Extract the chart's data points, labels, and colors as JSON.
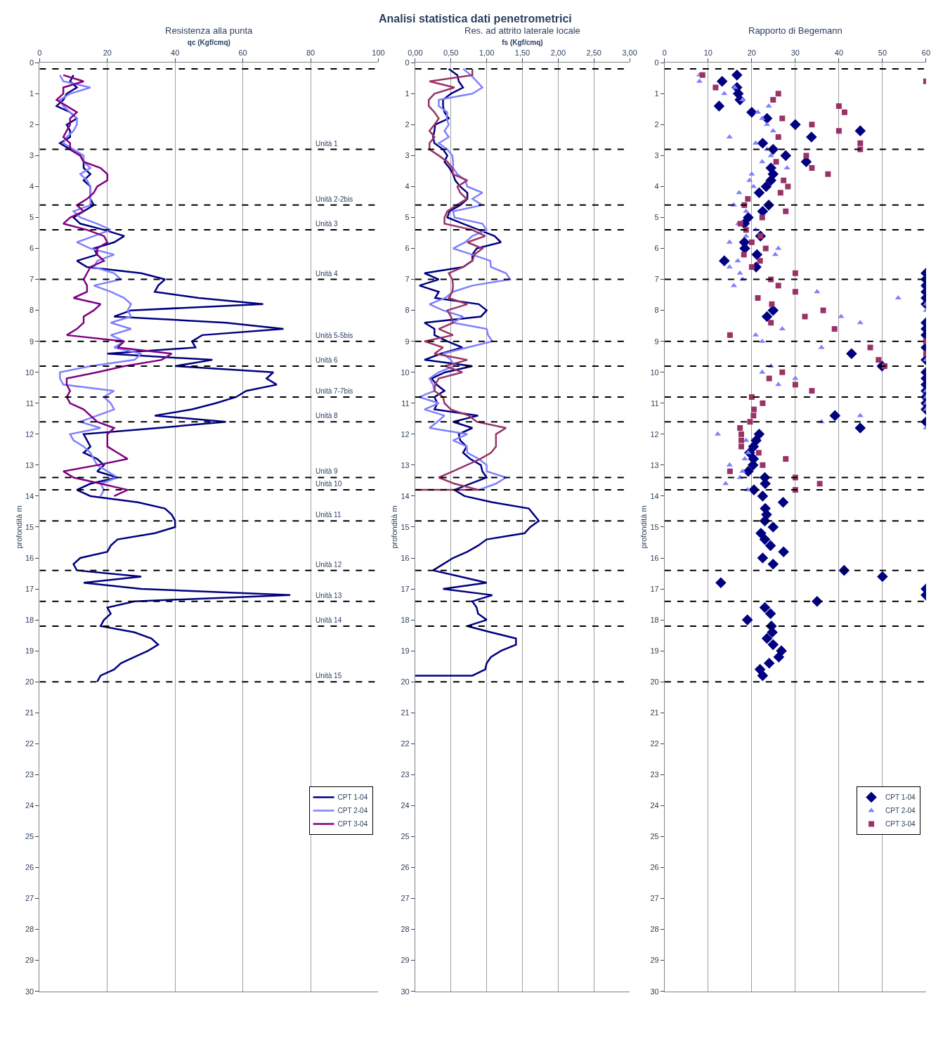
{
  "chart_data": [
    {
      "type": "line",
      "title": "Resistenza alla punta",
      "xlabel": "qc (Kgf/cmq)",
      "ylabel": "profondità m",
      "annotations": [
        "Analisi statistica dati penetrometrici"
      ],
      "xlim": [
        0,
        100
      ],
      "xticks": [
        0,
        20,
        40,
        60,
        80,
        100
      ],
      "ylim": [
        30,
        0
      ],
      "yticks": [
        0,
        1,
        2,
        3,
        4,
        5,
        6,
        7,
        8,
        9,
        10,
        11,
        12,
        13,
        14,
        15,
        16,
        17,
        18,
        19,
        20,
        21,
        22,
        23,
        24,
        25,
        26,
        27,
        28,
        29,
        30
      ],
      "grid": "x",
      "legend": "bottom right",
      "line_style": "solid",
      "marker": "none",
      "ref_lines": [
        {
          "axis": "y",
          "value": 0.2,
          "label": null,
          "color": "#000000",
          "line_style": "dashed"
        },
        {
          "axis": "y",
          "value": 2.8,
          "label": "Unità 1",
          "color": "#000000",
          "line_style": "dashed"
        },
        {
          "axis": "y",
          "value": 4.6,
          "label": "Unità 2-2bis",
          "color": "#000000",
          "line_style": "dashed"
        },
        {
          "axis": "y",
          "value": 5.4,
          "label": "Unità 3",
          "color": "#000000",
          "line_style": "dashed"
        },
        {
          "axis": "y",
          "value": 7.0,
          "label": "Unità 4",
          "color": "#000000",
          "line_style": "dashed"
        },
        {
          "axis": "y",
          "value": 9.0,
          "label": "Unità 5-5bis",
          "color": "#000000",
          "line_style": "dashed"
        },
        {
          "axis": "y",
          "value": 9.8,
          "label": "Unità 6",
          "color": "#000000",
          "line_style": "dashed"
        },
        {
          "axis": "y",
          "value": 10.8,
          "label": "Unità 7-7bis",
          "color": "#000000",
          "line_style": "dashed"
        },
        {
          "axis": "y",
          "value": 11.6,
          "label": "Unità 8",
          "color": "#000000",
          "line_style": "dashed"
        },
        {
          "axis": "y",
          "value": 13.4,
          "label": "Unità 9",
          "color": "#000000",
          "line_style": "dashed"
        },
        {
          "axis": "y",
          "value": 13.8,
          "label": "Unità 10",
          "color": "#000000",
          "line_style": "dashed"
        },
        {
          "axis": "y",
          "value": 14.8,
          "label": "Unità 11",
          "color": "#000000",
          "line_style": "dashed"
        },
        {
          "axis": "y",
          "value": 16.4,
          "label": "Unità 12",
          "color": "#000000",
          "line_style": "dashed"
        },
        {
          "axis": "y",
          "value": 17.4,
          "label": "Unità 13",
          "color": "#000000",
          "line_style": "dashed"
        },
        {
          "axis": "y",
          "value": 18.2,
          "label": "Unità 14",
          "color": "#000000",
          "line_style": "dashed"
        },
        {
          "axis": "y",
          "value": 20.0,
          "label": "Unità 15",
          "color": "#000000",
          "line_style": "dashed"
        }
      ],
      "series": [
        {
          "name": "CPT 1-04",
          "color": "#000080",
          "x": [
            10,
            9,
            11,
            8,
            7,
            5,
            9,
            11,
            8,
            9,
            9,
            6,
            9,
            12,
            13,
            13,
            15,
            13,
            15,
            15,
            15,
            16,
            13,
            10,
            12,
            19,
            25,
            22,
            16,
            17,
            11,
            14,
            30,
            37,
            35,
            34,
            47,
            66,
            27,
            22,
            55,
            72,
            48,
            45,
            46,
            20,
            51,
            40,
            69,
            67,
            70,
            61,
            58,
            52,
            45,
            34,
            55,
            35,
            13,
            14,
            15,
            13,
            17,
            19,
            17,
            23,
            15,
            11,
            15,
            29,
            37,
            39,
            40,
            40,
            34,
            23,
            21,
            20,
            12,
            10,
            11,
            30,
            13,
            30,
            74,
            28,
            20,
            21,
            19,
            18,
            28,
            33,
            35,
            32,
            28,
            24,
            22,
            18,
            17
          ],
          "values": [
            0.4,
            0.6,
            0.8,
            1.0,
            1.2,
            1.4,
            1.6,
            1.8,
            2.0,
            2.2,
            2.4,
            2.6,
            2.8,
            3.0,
            3.2,
            3.4,
            3.6,
            3.8,
            4.0,
            4.2,
            4.4,
            4.6,
            4.8,
            5.0,
            5.2,
            5.4,
            5.6,
            5.8,
            6.0,
            6.2,
            6.4,
            6.6,
            6.8,
            7.0,
            7.2,
            7.4,
            7.6,
            7.8,
            8.0,
            8.2,
            8.4,
            8.6,
            8.8,
            9.0,
            9.2,
            9.4,
            9.6,
            9.8,
            10.0,
            10.2,
            10.4,
            10.6,
            10.8,
            11.0,
            11.2,
            11.4,
            11.6,
            11.8,
            12.0,
            12.2,
            12.4,
            12.6,
            12.8,
            13.0,
            13.2,
            13.4,
            13.6,
            13.8,
            14.0,
            14.2,
            14.4,
            14.6,
            14.8,
            15.0,
            15.2,
            15.4,
            15.6,
            15.8,
            16.0,
            16.2,
            16.4,
            16.6,
            16.8,
            17.0,
            17.2,
            17.4,
            17.6,
            17.8,
            18.0,
            18.2,
            18.4,
            18.6,
            18.8,
            19.0,
            19.2,
            19.4,
            19.6,
            19.8,
            20.0
          ]
        },
        {
          "name": "CPT 2-04",
          "color": "#8080ff",
          "x": [
            6,
            7,
            15,
            9,
            6,
            7,
            9,
            11,
            11,
            10,
            8,
            7,
            10,
            13,
            13,
            15,
            12,
            14,
            15,
            15,
            15,
            15,
            10,
            12,
            17,
            21,
            16,
            11,
            15,
            22,
            17,
            16,
            22,
            24,
            16,
            21,
            25,
            27,
            26,
            27,
            21,
            27,
            21,
            25,
            22,
            30,
            28,
            15,
            6,
            6,
            7,
            22,
            19,
            21,
            22,
            17,
            12,
            18,
            9,
            10,
            13,
            15,
            16,
            17,
            20,
            23,
            18,
            19,
            18
          ],
          "values": [
            0.4,
            0.6,
            0.8,
            1.0,
            1.2,
            1.4,
            1.6,
            1.8,
            2.0,
            2.2,
            2.4,
            2.6,
            2.8,
            3.0,
            3.2,
            3.4,
            3.6,
            3.8,
            4.0,
            4.2,
            4.4,
            4.6,
            4.8,
            5.0,
            5.2,
            5.4,
            5.6,
            5.8,
            6.0,
            6.2,
            6.4,
            6.6,
            6.8,
            7.0,
            7.2,
            7.4,
            7.6,
            7.8,
            8.0,
            8.2,
            8.4,
            8.6,
            8.8,
            9.0,
            9.2,
            9.4,
            9.6,
            9.8,
            10.0,
            10.2,
            10.4,
            10.6,
            10.8,
            11.0,
            11.2,
            11.4,
            11.6,
            11.8,
            12.0,
            12.2,
            12.4,
            12.6,
            12.8,
            13.0,
            13.2,
            13.4,
            13.6,
            13.8,
            14.0
          ]
        },
        {
          "name": "CPT 3-04",
          "color": "#800080",
          "x": [
            7,
            13,
            7,
            7,
            5,
            8,
            11,
            9,
            9,
            8,
            7,
            9,
            9,
            12,
            13,
            18,
            20,
            20,
            17,
            16,
            14,
            11,
            13,
            9,
            7,
            14,
            19,
            20,
            17,
            17,
            19,
            15,
            14,
            13,
            14,
            14,
            10,
            18,
            16,
            13,
            13,
            11,
            8,
            25,
            23,
            39,
            36,
            25,
            17,
            8,
            8,
            9,
            8,
            9,
            13,
            15,
            17,
            22,
            20,
            20,
            20,
            23,
            26,
            17,
            7,
            10,
            18,
            26,
            22
          ],
          "values": [
            0.4,
            0.6,
            0.8,
            1.0,
            1.2,
            1.4,
            1.6,
            1.8,
            2.0,
            2.2,
            2.4,
            2.6,
            2.8,
            3.0,
            3.2,
            3.4,
            3.6,
            3.8,
            4.0,
            4.2,
            4.4,
            4.6,
            4.8,
            5.0,
            5.2,
            5.4,
            5.6,
            5.8,
            6.0,
            6.2,
            6.4,
            6.6,
            6.8,
            7.0,
            7.2,
            7.4,
            7.6,
            7.8,
            8.0,
            8.2,
            8.4,
            8.6,
            8.8,
            9.0,
            9.2,
            9.4,
            9.6,
            9.8,
            10.0,
            10.2,
            10.4,
            10.6,
            10.8,
            11.0,
            11.2,
            11.4,
            11.6,
            11.8,
            12.0,
            12.2,
            12.4,
            12.6,
            12.8,
            13.0,
            13.2,
            13.4,
            13.6,
            13.8,
            14.0
          ]
        }
      ]
    },
    {
      "type": "line",
      "title": "Res. ad attrito laterale locale",
      "xlabel": "fs (Kgf/cmq)",
      "ylabel": "profondità m",
      "xlim": [
        0,
        3
      ],
      "xticks": [
        {
          "value": 0,
          "label": "0,00"
        },
        {
          "value": 0.5,
          "label": "0,50"
        },
        {
          "value": 1,
          "label": "1,00"
        },
        {
          "value": 1.5,
          "label": "1,50"
        },
        {
          "value": 2,
          "label": "2,00"
        },
        {
          "value": 2.5,
          "label": "2,50"
        },
        {
          "value": 3,
          "label": "3,00"
        }
      ],
      "ylim": [
        30,
        0
      ],
      "yticks": [
        0,
        1,
        2,
        3,
        4,
        5,
        6,
        7,
        8,
        9,
        10,
        11,
        12,
        13,
        14,
        15,
        16,
        17,
        18,
        19,
        20,
        21,
        22,
        23,
        24,
        25,
        26,
        27,
        28,
        29,
        30
      ],
      "grid": "x",
      "line_style": "solid",
      "marker": "none",
      "ref_lines": [
        {
          "axis": "y",
          "value": 0.2,
          "color": "#000000",
          "line_style": "dashed"
        },
        {
          "axis": "y",
          "value": 2.8,
          "color": "#000000",
          "line_style": "dashed"
        },
        {
          "axis": "y",
          "value": 4.6,
          "color": "#000000",
          "line_style": "dashed"
        },
        {
          "axis": "y",
          "value": 5.4,
          "color": "#000000",
          "line_style": "dashed"
        },
        {
          "axis": "y",
          "value": 7.0,
          "color": "#000000",
          "line_style": "dashed"
        },
        {
          "axis": "y",
          "value": 9.0,
          "color": "#000000",
          "line_style": "dashed"
        },
        {
          "axis": "y",
          "value": 9.8,
          "color": "#000000",
          "line_style": "dashed"
        },
        {
          "axis": "y",
          "value": 10.8,
          "color": "#000000",
          "line_style": "dashed"
        },
        {
          "axis": "y",
          "value": 11.6,
          "color": "#000000",
          "line_style": "dashed"
        },
        {
          "axis": "y",
          "value": 13.4,
          "color": "#000000",
          "line_style": "dashed"
        },
        {
          "axis": "y",
          "value": 13.8,
          "color": "#000000",
          "line_style": "dashed"
        },
        {
          "axis": "y",
          "value": 14.8,
          "color": "#000000",
          "line_style": "dashed"
        },
        {
          "axis": "y",
          "value": 16.4,
          "color": "#000000",
          "line_style": "dashed"
        },
        {
          "axis": "y",
          "value": 17.4,
          "color": "#000000",
          "line_style": "dashed"
        },
        {
          "axis": "y",
          "value": 18.2,
          "color": "#000000",
          "line_style": "dashed"
        },
        {
          "axis": "y",
          "value": 20.0,
          "color": "#000000",
          "line_style": "dashed"
        }
      ],
      "series": [
        {
          "color": "#000080",
          "x": [
            0.47,
            0.59,
            0.61,
            0.67,
            0.5,
            0.39,
            0.39,
            0.41,
            0.47,
            0.28,
            0.27,
            0.25,
            0.27,
            0.39,
            0.45,
            0.41,
            0.48,
            0.53,
            0.56,
            0.63,
            0.73,
            0.73,
            0.63,
            0.48,
            0.45,
            0.67,
            0.89,
            1.11,
            1.2,
            0.86,
            0.8,
            0.8,
            0.67,
            0.13,
            0.33,
            0.06,
            0.33,
            0.28,
            0.89,
            1.0,
            0.92,
            0.13,
            0.27,
            0.27,
            0.45,
            0.66,
            0.36,
            0.13,
            0.8,
            0.42,
            0.23,
            0.3,
            0.41,
            0.27,
            0.31,
            0.27,
            0.88,
            0.53,
            0.8,
            0.61,
            0.63,
            0.72,
            0.67,
            0.77,
            0.92,
            0.94,
            1.0,
            0.77,
            0.55,
            0.69,
            1.08,
            1.59,
            1.66,
            1.73,
            1.61,
            1.53,
            1.0,
            0.88,
            0.73,
            0.53,
            0.39,
            0.25,
            0.63,
            1.0,
            0.39,
            1.08,
            0.8,
            0.86,
            0.88,
            1.0,
            0.73,
            1.06,
            1.41,
            1.41,
            1.2,
            1.06,
            1.0,
            0.98,
            0.8,
            0.0
          ],
          "values": [
            0.2,
            0.4,
            0.6,
            0.8,
            1.0,
            1.2,
            1.4,
            1.6,
            1.8,
            2.0,
            2.2,
            2.4,
            2.6,
            2.8,
            3.0,
            3.2,
            3.4,
            3.6,
            3.8,
            4.0,
            4.2,
            4.4,
            4.6,
            4.8,
            5.0,
            5.2,
            5.4,
            5.6,
            5.8,
            6.0,
            6.2,
            6.4,
            6.6,
            6.8,
            7.0,
            7.2,
            7.4,
            7.6,
            7.8,
            8.0,
            8.2,
            8.4,
            8.6,
            8.8,
            9.0,
            9.2,
            9.4,
            9.6,
            9.8,
            10.0,
            10.2,
            10.4,
            10.6,
            10.8,
            11.0,
            11.2,
            11.4,
            11.6,
            11.8,
            12.0,
            12.2,
            12.4,
            12.6,
            12.8,
            13.0,
            13.2,
            13.4,
            13.6,
            13.8,
            14.0,
            14.2,
            14.4,
            14.6,
            14.8,
            15.0,
            15.2,
            15.4,
            15.6,
            15.8,
            16.0,
            16.2,
            16.4,
            16.6,
            16.8,
            17.0,
            17.2,
            17.4,
            17.6,
            17.8,
            18.0,
            18.2,
            18.4,
            18.6,
            18.8,
            19.0,
            19.2,
            19.4,
            19.6,
            19.8,
            19.8
          ]
        },
        {
          "color": "#8080ff",
          "x": [
            0.67,
            0.78,
            0.86,
            0.94,
            0.8,
            0.33,
            0.33,
            0.45,
            0.44,
            0.47,
            0.41,
            0.47,
            0.33,
            0.45,
            0.52,
            0.53,
            0.53,
            0.59,
            0.7,
            0.73,
            0.94,
            0.8,
            0.94,
            0.53,
            0.55,
            0.94,
            1.0,
            0.8,
            0.7,
            0.53,
            0.8,
            1.05,
            1.06,
            1.27,
            1.33,
            0.8,
            0.53,
            0.42,
            0.2,
            0.39,
            0.67,
            0.53,
            1.0,
            1.02,
            1.08,
            0.73,
            0.39,
            0.5,
            0.55,
            0.33,
            0.2,
            0.25,
            0.27,
            0.06,
            0.33,
            0.13,
            0.41,
            0.31,
            0.2,
            0.73,
            0.53,
            0.72,
            0.73,
            0.89,
            1.0,
            1.0,
            1.27,
            1.13,
            0.89
          ],
          "values": [
            0.2,
            0.4,
            0.6,
            0.8,
            1.0,
            1.2,
            1.4,
            1.6,
            1.8,
            2.0,
            2.2,
            2.4,
            2.6,
            2.8,
            3.0,
            3.2,
            3.4,
            3.6,
            3.8,
            4.0,
            4.2,
            4.4,
            4.6,
            4.8,
            5.0,
            5.2,
            5.4,
            5.6,
            5.8,
            6.0,
            6.2,
            6.4,
            6.6,
            6.8,
            7.0,
            7.2,
            7.4,
            7.6,
            7.8,
            8.0,
            8.2,
            8.4,
            8.6,
            8.8,
            9.0,
            9.2,
            9.4,
            9.6,
            9.8,
            10.0,
            10.2,
            10.4,
            10.6,
            10.8,
            11.0,
            11.2,
            11.4,
            11.6,
            11.8,
            12.0,
            12.2,
            12.4,
            12.6,
            12.8,
            13.0,
            13.2,
            13.4,
            13.6,
            13.8
          ]
        },
        {
          "color": "#993366",
          "x": [
            0.8,
            0.8,
            0.2,
            0.55,
            0.27,
            0.19,
            0.19,
            0.27,
            0.33,
            0.27,
            0.2,
            0.27,
            0.2,
            0.2,
            0.33,
            0.45,
            0.52,
            0.53,
            0.73,
            0.59,
            0.63,
            0.72,
            0.58,
            0.45,
            0.41,
            0.41,
            0.8,
            0.98,
            0.73,
            0.94,
            0.83,
            0.8,
            0.67,
            0.47,
            0.52,
            0.53,
            0.52,
            0.47,
            0.73,
            0.45,
            0.5,
            0.53,
            0.33,
            0.53,
            0.13,
            0.39,
            0.27,
            0.73,
            0.42,
            0.66,
            0.33,
            0.28,
            0.27,
            0.39,
            0.41,
            0.5,
            0.75,
            0.86,
            1.27,
            1.13,
            1.13,
            1.13,
            1.06,
            0.91,
            0.72,
            0.53,
            0.33,
            0.55,
            0.89,
            0.0
          ],
          "values": [
            0.2,
            0.4,
            0.6,
            0.8,
            1.0,
            1.2,
            1.4,
            1.6,
            1.8,
            2.0,
            2.2,
            2.4,
            2.6,
            2.8,
            3.0,
            3.2,
            3.4,
            3.6,
            3.8,
            4.0,
            4.2,
            4.4,
            4.6,
            4.8,
            5.0,
            5.2,
            5.4,
            5.6,
            5.8,
            6.0,
            6.2,
            6.4,
            6.6,
            6.8,
            7.0,
            7.2,
            7.4,
            7.6,
            7.8,
            8.0,
            8.2,
            8.4,
            8.6,
            8.8,
            9.0,
            9.2,
            9.4,
            9.6,
            9.8,
            10.0,
            10.2,
            10.4,
            10.6,
            10.8,
            11.0,
            11.2,
            11.4,
            11.6,
            11.8,
            12.0,
            12.2,
            12.4,
            12.6,
            12.8,
            13.0,
            13.2,
            13.4,
            13.6,
            13.8,
            13.8
          ]
        }
      ]
    },
    {
      "type": "scatter",
      "title": "Rapporto di Begemann",
      "ylabel": "profondità m",
      "xlim": [
        0,
        60
      ],
      "xticks": [
        0,
        10,
        20,
        30,
        40,
        50,
        60
      ],
      "ylim": [
        30,
        0
      ],
      "yticks": [
        0,
        1,
        2,
        3,
        4,
        5,
        6,
        7,
        8,
        9,
        10,
        11,
        12,
        13,
        14,
        15,
        16,
        17,
        18,
        19,
        20,
        21,
        22,
        23,
        24,
        25,
        26,
        27,
        28,
        29,
        30
      ],
      "grid": "x",
      "legend": "bottom right",
      "ref_lines": [
        {
          "axis": "y",
          "value": 0.2,
          "color": "#000000",
          "line_style": "dashed"
        },
        {
          "axis": "y",
          "value": 2.8,
          "color": "#000000",
          "line_style": "dashed"
        },
        {
          "axis": "y",
          "value": 4.6,
          "color": "#000000",
          "line_style": "dashed"
        },
        {
          "axis": "y",
          "value": 5.4,
          "color": "#000000",
          "line_style": "dashed"
        },
        {
          "axis": "y",
          "value": 7.0,
          "color": "#000000",
          "line_style": "dashed"
        },
        {
          "axis": "y",
          "value": 9.0,
          "color": "#000000",
          "line_style": "dashed"
        },
        {
          "axis": "y",
          "value": 9.8,
          "color": "#000000",
          "line_style": "dashed"
        },
        {
          "axis": "y",
          "value": 10.8,
          "color": "#000000",
          "line_style": "dashed"
        },
        {
          "axis": "y",
          "value": 11.6,
          "color": "#000000",
          "line_style": "dashed"
        },
        {
          "axis": "y",
          "value": 13.4,
          "color": "#000000",
          "line_style": "dashed"
        },
        {
          "axis": "y",
          "value": 13.8,
          "color": "#000000",
          "line_style": "dashed"
        },
        {
          "axis": "y",
          "value": 14.8,
          "color": "#000000",
          "line_style": "dashed"
        },
        {
          "axis": "y",
          "value": 16.4,
          "color": "#000000",
          "line_style": "dashed"
        },
        {
          "axis": "y",
          "value": 17.4,
          "color": "#000000",
          "line_style": "dashed"
        },
        {
          "axis": "y",
          "value": 18.2,
          "color": "#000000",
          "line_style": "dashed"
        },
        {
          "axis": "y",
          "value": 20.0,
          "color": "#000000",
          "line_style": "dashed"
        }
      ],
      "series": [
        {
          "name": "CPT 1-04",
          "color": "#000080",
          "marker": "diamond",
          "x": [
            16.6,
            13.2,
            16.6,
            16.9,
            17.3,
            12.5,
            20,
            23.5,
            30,
            44.9,
            33.7,
            22.5,
            24.9,
            27.8,
            32.5,
            24.4,
            24.9,
            24.4,
            23.3,
            21.7,
            23.9,
            22.5,
            19.2,
            18.3,
            22,
            18.3,
            18.4,
            21.2,
            13.7,
            21,
            60,
            60,
            60,
            60,
            60,
            60,
            24.9,
            23.5,
            60,
            60,
            60,
            60,
            42.9,
            60,
            49.9,
            60,
            60,
            60,
            60,
            60,
            60,
            60,
            39.1,
            60,
            44.9,
            21.7,
            21,
            20.4,
            19.5,
            20.4,
            20.3,
            19.2,
            23,
            23.1,
            20.5,
            22.5,
            27.2,
            23.1,
            23.4,
            23,
            24.9,
            22.1,
            23,
            24.3,
            27.3,
            22.5,
            24.9,
            41.2,
            50,
            12.9,
            60,
            60,
            35,
            23,
            24.3,
            19,
            24.5,
            24.7,
            23.5,
            24.9,
            26.8,
            26.2,
            24,
            21.9,
            22.5
          ],
          "values": [
            0.4,
            0.6,
            0.8,
            1.0,
            1.2,
            1.4,
            1.6,
            1.8,
            2.0,
            2.2,
            2.4,
            2.6,
            2.8,
            3.0,
            3.2,
            3.4,
            3.6,
            3.8,
            4.0,
            4.2,
            4.6,
            4.8,
            5.0,
            5.2,
            5.6,
            5.8,
            6.0,
            6.2,
            6.4,
            6.6,
            6.8,
            7.0,
            7.2,
            7.4,
            7.6,
            7.8,
            8.0,
            8.2,
            8.4,
            8.6,
            8.8,
            9.2,
            9.4,
            9.6,
            9.8,
            10.0,
            10.2,
            10.4,
            10.6,
            10.8,
            11.0,
            11.2,
            11.4,
            11.6,
            11.8,
            12.0,
            12.2,
            12.4,
            12.6,
            12.8,
            13.0,
            13.2,
            13.4,
            13.6,
            13.8,
            14.0,
            14.2,
            14.4,
            14.6,
            14.8,
            15.0,
            15.2,
            15.4,
            15.6,
            15.8,
            16.0,
            16.2,
            16.4,
            16.6,
            16.8,
            17.0,
            17.2,
            17.4,
            17.6,
            17.8,
            18.0,
            18.2,
            18.4,
            18.6,
            18.8,
            19.0,
            19.2,
            19.4,
            19.6,
            19.8
          ]
        },
        {
          "name": "CPT 2-04",
          "color": "#8080ff",
          "marker": "triangle",
          "x": [
            8,
            8,
            16.1,
            13.7,
            17.9,
            23.9,
            21.4,
            22.4,
            23.5,
            24.9,
            14.9,
            20.9,
            23.5,
            24.4,
            22.4,
            28.1,
            20,
            19.5,
            20.4,
            17.1,
            15.9,
            18.7,
            16.9,
            20.9,
            18.7,
            14.9,
            26.1,
            25.4,
            16.8,
            14.9,
            17.3,
            17.9,
            15.9,
            35,
            53.6,
            60,
            60,
            40.5,
            44.9,
            27,
            20.9,
            22.4,
            36,
            60,
            24.4,
            22.4,
            30,
            26.1,
            60,
            60,
            60,
            60,
            44.9,
            36,
            60,
            12.2,
            18.7,
            19.2,
            18.4,
            14.9,
            17.9,
            17.3,
            14,
            19
          ],
          "values": [
            0.4,
            0.6,
            0.8,
            1.0,
            1.2,
            1.4,
            1.6,
            1.8,
            2.0,
            2.2,
            2.4,
            2.6,
            2.8,
            3.0,
            3.2,
            3.4,
            3.6,
            3.8,
            4.0,
            4.2,
            4.6,
            4.8,
            5.2,
            5.4,
            5.6,
            5.8,
            6.0,
            6.2,
            6.4,
            6.6,
            6.8,
            7.0,
            7.2,
            7.4,
            7.6,
            7.8,
            8.0,
            8.2,
            8.4,
            8.6,
            8.8,
            9.0,
            9.2,
            9.6,
            9.8,
            10.0,
            10.2,
            10.4,
            10.6,
            10.8,
            11.0,
            11.2,
            11.4,
            11.6,
            11.8,
            12.0,
            12.2,
            12.6,
            12.8,
            13.0,
            13.2,
            13.4,
            13.6,
            13.8
          ]
        },
        {
          "name": "CPT 3-04",
          "color": "#993366",
          "marker": "square",
          "x": [
            8.7,
            60,
            11.7,
            26.1,
            24.9,
            40,
            41.3,
            27,
            33.8,
            40,
            26.1,
            44.9,
            44.9,
            32.5,
            25.6,
            33.8,
            37.5,
            27.3,
            28.3,
            26.6,
            19.1,
            18.3,
            27.8,
            22.4,
            17.4,
            18.7,
            22,
            20,
            23.2,
            18.2,
            21.9,
            20,
            30,
            24.4,
            26.1,
            30,
            21.4,
            24.6,
            36.4,
            32.2,
            24.4,
            39,
            15,
            60,
            47.2,
            60,
            49.1,
            50.5,
            27,
            24,
            30,
            33.8,
            20,
            22.5,
            20.5,
            20.4,
            19.6,
            17.3,
            17.6,
            17.6,
            17.6,
            21.6,
            27.8,
            22.5,
            15,
            30,
            35.6,
            30
          ],
          "values": [
            0.4,
            0.6,
            0.8,
            1.0,
            1.2,
            1.4,
            1.6,
            1.8,
            2.0,
            2.2,
            2.4,
            2.6,
            2.8,
            3.0,
            3.2,
            3.4,
            3.6,
            3.8,
            4.0,
            4.2,
            4.4,
            4.6,
            4.8,
            5.0,
            5.2,
            5.4,
            5.6,
            5.8,
            6.0,
            6.2,
            6.4,
            6.6,
            6.8,
            7.0,
            7.2,
            7.4,
            7.6,
            7.8,
            8.0,
            8.2,
            8.4,
            8.6,
            8.8,
            9.0,
            9.2,
            9.4,
            9.6,
            9.8,
            10.0,
            10.2,
            10.4,
            10.6,
            10.8,
            11.0,
            11.2,
            11.4,
            11.6,
            11.8,
            12.0,
            12.2,
            12.4,
            12.6,
            12.8,
            13.0,
            13.2,
            13.4,
            13.6,
            13.8
          ]
        }
      ]
    }
  ]
}
